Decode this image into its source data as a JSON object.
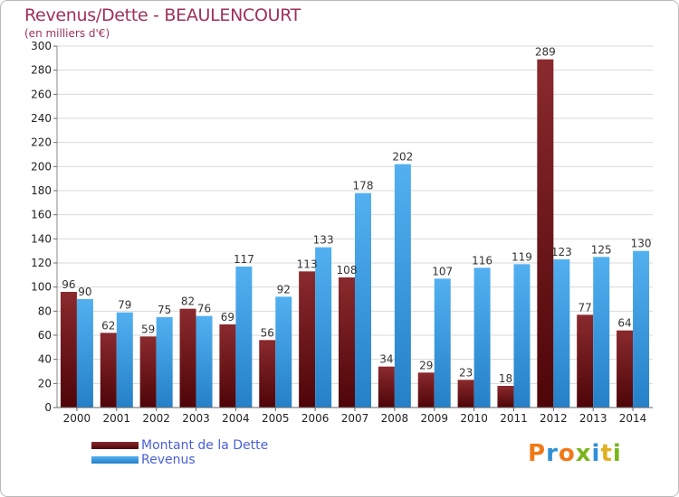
{
  "header": {
    "title": "Revenus/Dette - BEAULENCOURT",
    "subtitle": "(en milliers d'€)"
  },
  "legend": {
    "items": [
      {
        "label": "Montant de la Dette",
        "color": "#6d1518"
      },
      {
        "label": "Revenus",
        "color": "#3a9ae0"
      }
    ]
  },
  "logo": {
    "text": "Proxiti"
  },
  "colors": {
    "dette": "#6d1518",
    "revenus": "#3a9ae0",
    "title": "#a0305a",
    "legend_text": "#4a5fd6"
  },
  "chart_data": {
    "type": "bar",
    "title": "Revenus/Dette - BEAULENCOURT",
    "ylabel": "(en milliers d'€)",
    "xlabel": "",
    "ylim": [
      0,
      300
    ],
    "yticks": [
      0,
      20,
      40,
      60,
      80,
      100,
      120,
      140,
      160,
      180,
      200,
      220,
      240,
      260,
      280,
      300
    ],
    "categories": [
      "2000",
      "2001",
      "2002",
      "2003",
      "2004",
      "2005",
      "2006",
      "2007",
      "2008",
      "2009",
      "2010",
      "2011",
      "2012",
      "2013",
      "2014"
    ],
    "series": [
      {
        "name": "Montant de la Dette",
        "values": [
          96,
          62,
          59,
          82,
          69,
          56,
          113,
          108,
          34,
          29,
          23,
          18,
          289,
          77,
          64
        ]
      },
      {
        "name": "Revenus",
        "values": [
          90,
          79,
          75,
          76,
          117,
          92,
          133,
          178,
          202,
          107,
          116,
          119,
          123,
          125,
          130
        ]
      }
    ],
    "grid": true,
    "legend_position": "bottom-left"
  }
}
